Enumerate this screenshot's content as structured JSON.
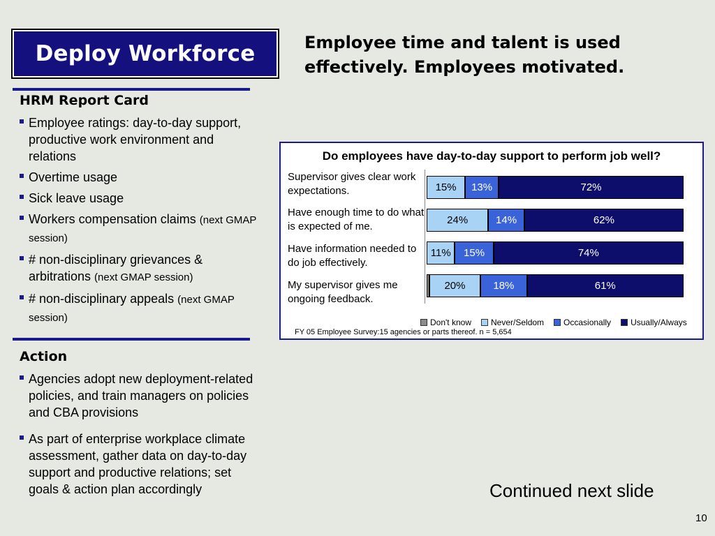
{
  "slide": {
    "title": "Deploy Workforce",
    "headline_line1": "Employee time and talent is used",
    "headline_line2": "effectively. Employees motivated.",
    "page_number": "10",
    "continued": "Continued next slide"
  },
  "report_card": {
    "heading": "HRM Report Card",
    "items": [
      {
        "text": "Employee ratings: day-to-day support, productive work environment and relations",
        "note": ""
      },
      {
        "text": "Overtime usage",
        "note": ""
      },
      {
        "text": "Sick leave usage",
        "note": ""
      },
      {
        "text": "Workers compensation claims ",
        "note": "(next GMAP session)"
      },
      {
        "text": "# non-disciplinary grievances & arbitrations ",
        "note": "(next GMAP session)"
      },
      {
        "text": "# non-disciplinary appeals ",
        "note": "(next GMAP session)"
      }
    ]
  },
  "action": {
    "heading": "Action",
    "items": [
      {
        "text": "Agencies adopt new deployment-related policies, and train managers on policies and CBA provisions"
      },
      {
        "text": "As part of enterprise workplace climate assessment, gather data on day-to-day support and productive relations; set goals & action plan accordingly"
      }
    ]
  },
  "colors": {
    "dont_know": "#8c8c8c",
    "never_seldom": "#a9d3f5",
    "occasionally": "#3a63d9",
    "usually_always": "#0d0d6b",
    "title_bg": "#14117f",
    "rule": "#1a1a8a"
  },
  "chart_data": {
    "type": "bar",
    "orientation": "horizontal",
    "stacked": true,
    "title": "Do employees have day-to-day support to perform job well?",
    "categories": [
      "Supervisor gives clear work expectations.",
      "Have enough time to do what is expected of me.",
      "Have information needed to do job effectively.",
      "My supervisor gives me ongoing feedback."
    ],
    "series": [
      {
        "name": "Don't know",
        "values": [
          0,
          0,
          0,
          1
        ],
        "labels": [
          "",
          "",
          "",
          ""
        ]
      },
      {
        "name": "Never/Seldom",
        "values": [
          15,
          24,
          11,
          20
        ],
        "labels": [
          "15%",
          "24%",
          "11%",
          "20%"
        ]
      },
      {
        "name": "Occasionally",
        "values": [
          13,
          14,
          15,
          18
        ],
        "labels": [
          "13%",
          "14%",
          "15%",
          "18%"
        ]
      },
      {
        "name": "Usually/Always",
        "values": [
          72,
          62,
          74,
          61
        ],
        "labels": [
          "72%",
          "62%",
          "74%",
          "61%"
        ]
      }
    ],
    "xlim": [
      0,
      100
    ],
    "legend_position": "bottom",
    "footnote": "FY 05 Employee Survey:15 agencies or parts thereof. n = 5,654"
  }
}
